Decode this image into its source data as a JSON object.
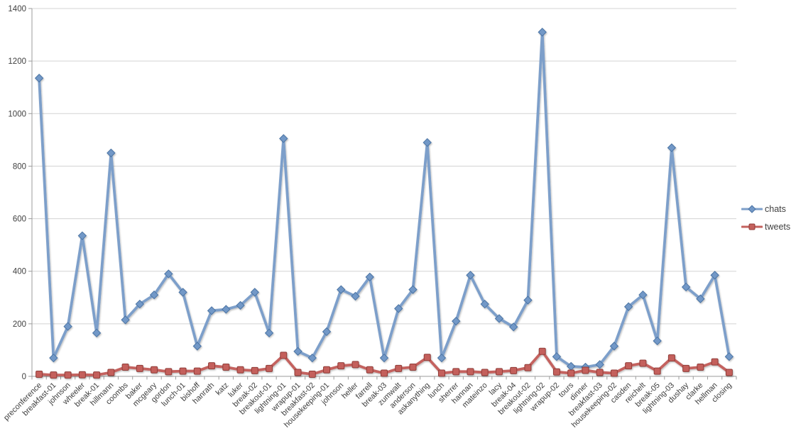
{
  "chart_data": {
    "type": "line",
    "title": "",
    "xlabel": "",
    "ylabel": "",
    "grid": "horizontal",
    "legend_position": "right-middle",
    "ylim": [
      0,
      1400
    ],
    "ytick_interval": 200,
    "y_ticks": [
      0,
      200,
      400,
      600,
      800,
      1000,
      1200,
      1400
    ],
    "categories": [
      "preconference",
      "breakfast-01",
      "johnson",
      "wheeler",
      "break-01",
      "hillmann",
      "coombs",
      "baker",
      "mcgeary",
      "gordon",
      "lunch-01",
      "bishoff",
      "hanrath",
      "katz",
      "luker",
      "break-02",
      "breakout-01",
      "lightning-01",
      "wrapup-01",
      "breakfast-02",
      "housekeeping-01",
      "johnson",
      "heller",
      "farrell",
      "break-03",
      "zumwalt",
      "anderson",
      "askanything",
      "lunch",
      "sherrer",
      "hannan",
      "mateinzo",
      "lacy",
      "break-04",
      "breakout-02",
      "lightning-02",
      "wrapup-02",
      "tours",
      "dinner",
      "breakfast-03",
      "housekeeping-02",
      "casden",
      "reichelt",
      "break-05",
      "lightning-03",
      "dushay",
      "clarke",
      "hellman",
      "closing"
    ],
    "series": [
      {
        "name": "chats",
        "marker": "diamond",
        "line_color": "#7d9fca",
        "marker_fill": "#7298c7",
        "marker_stroke": "#4c74a4",
        "values": [
          1135,
          70,
          190,
          535,
          165,
          850,
          215,
          275,
          310,
          390,
          320,
          115,
          250,
          255,
          270,
          320,
          165,
          905,
          95,
          70,
          170,
          330,
          305,
          378,
          70,
          258,
          330,
          890,
          70,
          210,
          385,
          275,
          220,
          188,
          290,
          1310,
          75,
          38,
          35,
          45,
          115,
          265,
          310,
          135,
          870,
          340,
          295,
          385,
          75
        ]
      },
      {
        "name": "tweets",
        "marker": "square",
        "line_color": "#c4625e",
        "marker_fill": "#c4615c",
        "marker_stroke": "#903c39",
        "values": [
          8,
          5,
          5,
          6,
          5,
          15,
          35,
          30,
          25,
          18,
          20,
          20,
          40,
          35,
          25,
          22,
          30,
          80,
          15,
          8,
          25,
          40,
          45,
          25,
          12,
          30,
          35,
          72,
          12,
          18,
          18,
          15,
          18,
          22,
          33,
          95,
          17,
          12,
          23,
          15,
          12,
          40,
          50,
          20,
          70,
          30,
          35,
          55,
          15
        ]
      }
    ],
    "colors": {
      "gridline": "#d3d3d3",
      "axis": "#9b9b9b",
      "tick": "#9b9b9b",
      "label_text": "#3f3f3f",
      "background": "#ffffff"
    }
  }
}
